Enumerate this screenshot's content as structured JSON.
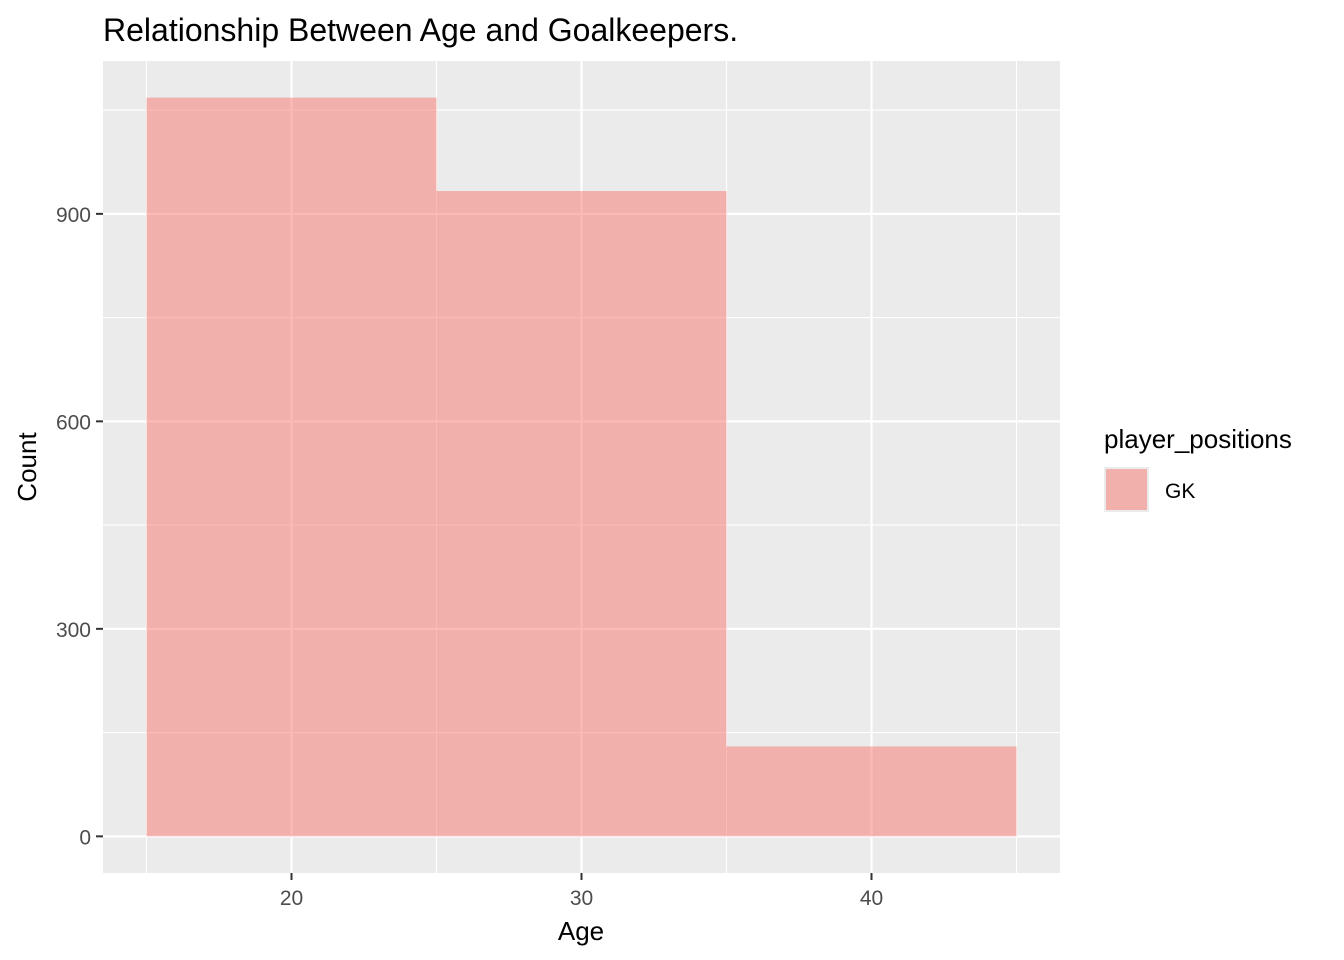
{
  "chart_data": {
    "type": "histogram",
    "title": "Relationship Between Age and Goalkeepers.",
    "xlabel": "Age",
    "ylabel": "Count",
    "bins": [
      {
        "x_start": 15,
        "x_end": 25,
        "count": 1068
      },
      {
        "x_start": 25,
        "x_end": 35,
        "count": 933
      },
      {
        "x_start": 35,
        "x_end": 45,
        "count": 130
      }
    ],
    "xlim": [
      13.5,
      46.5
    ],
    "ylim": [
      -53,
      1121
    ],
    "x_ticks": [
      20,
      30,
      40
    ],
    "x_tick_labels": [
      "20",
      "30",
      "40"
    ],
    "y_ticks": [
      0,
      300,
      600,
      900
    ],
    "y_tick_labels": [
      "0",
      "300",
      "600",
      "900"
    ],
    "grid": true,
    "legend": {
      "title": "player_positions",
      "placement": "right",
      "entries": [
        {
          "label": "GK",
          "color": "#F8766D"
        }
      ]
    },
    "colors": {
      "panel_background": "#EBEBEB",
      "grid": "#FFFFFF",
      "fill": "#F8766D",
      "fill_opacity": 0.5
    }
  }
}
